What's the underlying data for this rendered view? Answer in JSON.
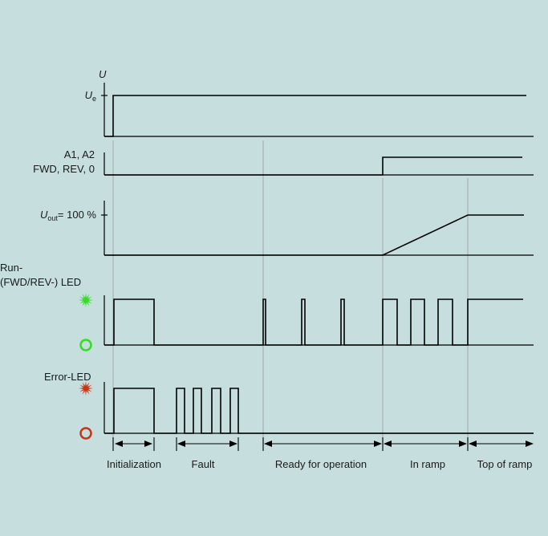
{
  "colors": {
    "background": "#c6dedd",
    "run_led": "#33dd22",
    "error_led": "#cc3311"
  },
  "signals": {
    "u_label": "U",
    "ue_main": "U",
    "ue_sub": "e",
    "a1a2_line1": "A1, A2",
    "a1a2_line2": "FWD, REV, 0",
    "uout_main": "U",
    "uout_sub": "out",
    "uout_value": "= 100 %",
    "run_led_line1": "Run-",
    "run_led_line2": "(FWD/REV-) LED",
    "error_led": "Error-LED"
  },
  "phases": [
    {
      "label": "Initialization"
    },
    {
      "label": "Fault"
    },
    {
      "label": "Ready for operation"
    },
    {
      "label": "In ramp"
    },
    {
      "label": "Top of ramp"
    }
  ],
  "icons": {
    "led_on": "star-burst-icon",
    "led_off": "ring-icon"
  }
}
